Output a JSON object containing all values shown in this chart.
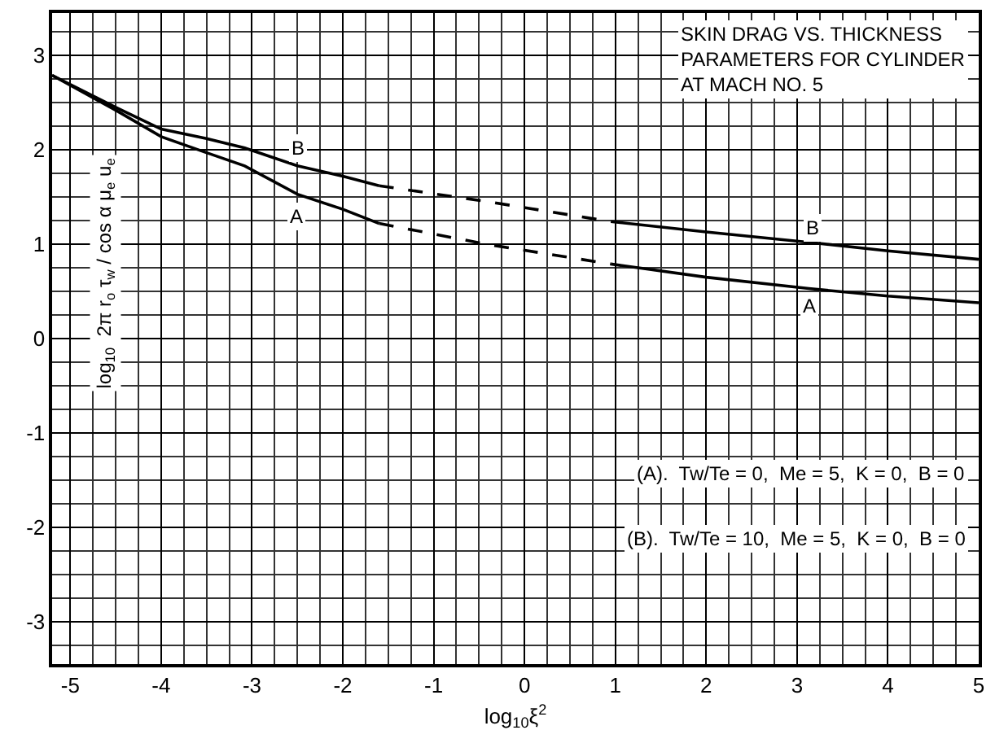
{
  "chart_data": {
    "type": "line",
    "title": "SKIN DRAG VS. THICKNESS PARAMETERS FOR CYLINDER AT MACH NO. 5",
    "xlabel": "log$_{10}$ξ$^{2}$",
    "ylabel": "log$_{10}$  2π r$_{o}$ τ$_{w}$ / cos α μ$_{e}$ u$_{e}$",
    "xlim": [
      -5.2,
      5
    ],
    "ylim": [
      -3.45,
      3.45
    ],
    "xticks": [
      -5,
      -4,
      -3,
      -2,
      -1,
      0,
      1,
      2,
      3,
      4,
      5
    ],
    "yticks": [
      -3,
      -2,
      -1,
      0,
      1,
      2,
      3
    ],
    "grid": true,
    "marker": "none",
    "series": [
      {
        "color": "#000000",
        "line_style": "solid",
        "x": [
          -5.2,
          -4.5,
          -4,
          -3.5,
          -3.08,
          -2.5,
          -2,
          -1.6
        ],
        "values": [
          2.79,
          2.45,
          2.22,
          2.12,
          2.02,
          1.83,
          1.72,
          1.62
        ]
      },
      {
        "color": "#000000",
        "line_style": "dashed",
        "x": [
          -1.6,
          -0.4,
          0.95
        ],
        "values": [
          1.62,
          1.45,
          1.24
        ]
      },
      {
        "color": "#000000",
        "line_style": "solid",
        "x": [
          0.95,
          2,
          3.13,
          4,
          5
        ],
        "values": [
          1.24,
          1.13,
          1.02,
          0.93,
          0.84
        ]
      },
      {
        "color": "#000000",
        "line_style": "solid",
        "x": [
          -5.2,
          -4.5,
          -4,
          -3.5,
          -3.08,
          -2.5,
          -2,
          -1.6
        ],
        "values": [
          2.79,
          2.42,
          2.14,
          1.97,
          1.83,
          1.53,
          1.37,
          1.22
        ]
      },
      {
        "color": "#000000",
        "line_style": "dashed",
        "x": [
          -1.6,
          -0.42,
          0.95
        ],
        "values": [
          1.22,
          1.0,
          0.79
        ]
      },
      {
        "color": "#000000",
        "line_style": "solid",
        "x": [
          0.95,
          2,
          3.13,
          4,
          5
        ],
        "values": [
          0.79,
          0.65,
          0.53,
          0.45,
          0.38
        ]
      }
    ],
    "annotations": [
      "B",
      "A",
      "B",
      "A",
      "(A).  Tw/Te = 0,  Me = 5,  K = 0,  B = 0",
      "(B).  Tw/Te = 10,  Me = 5,  K = 0,  B = 0"
    ]
  }
}
